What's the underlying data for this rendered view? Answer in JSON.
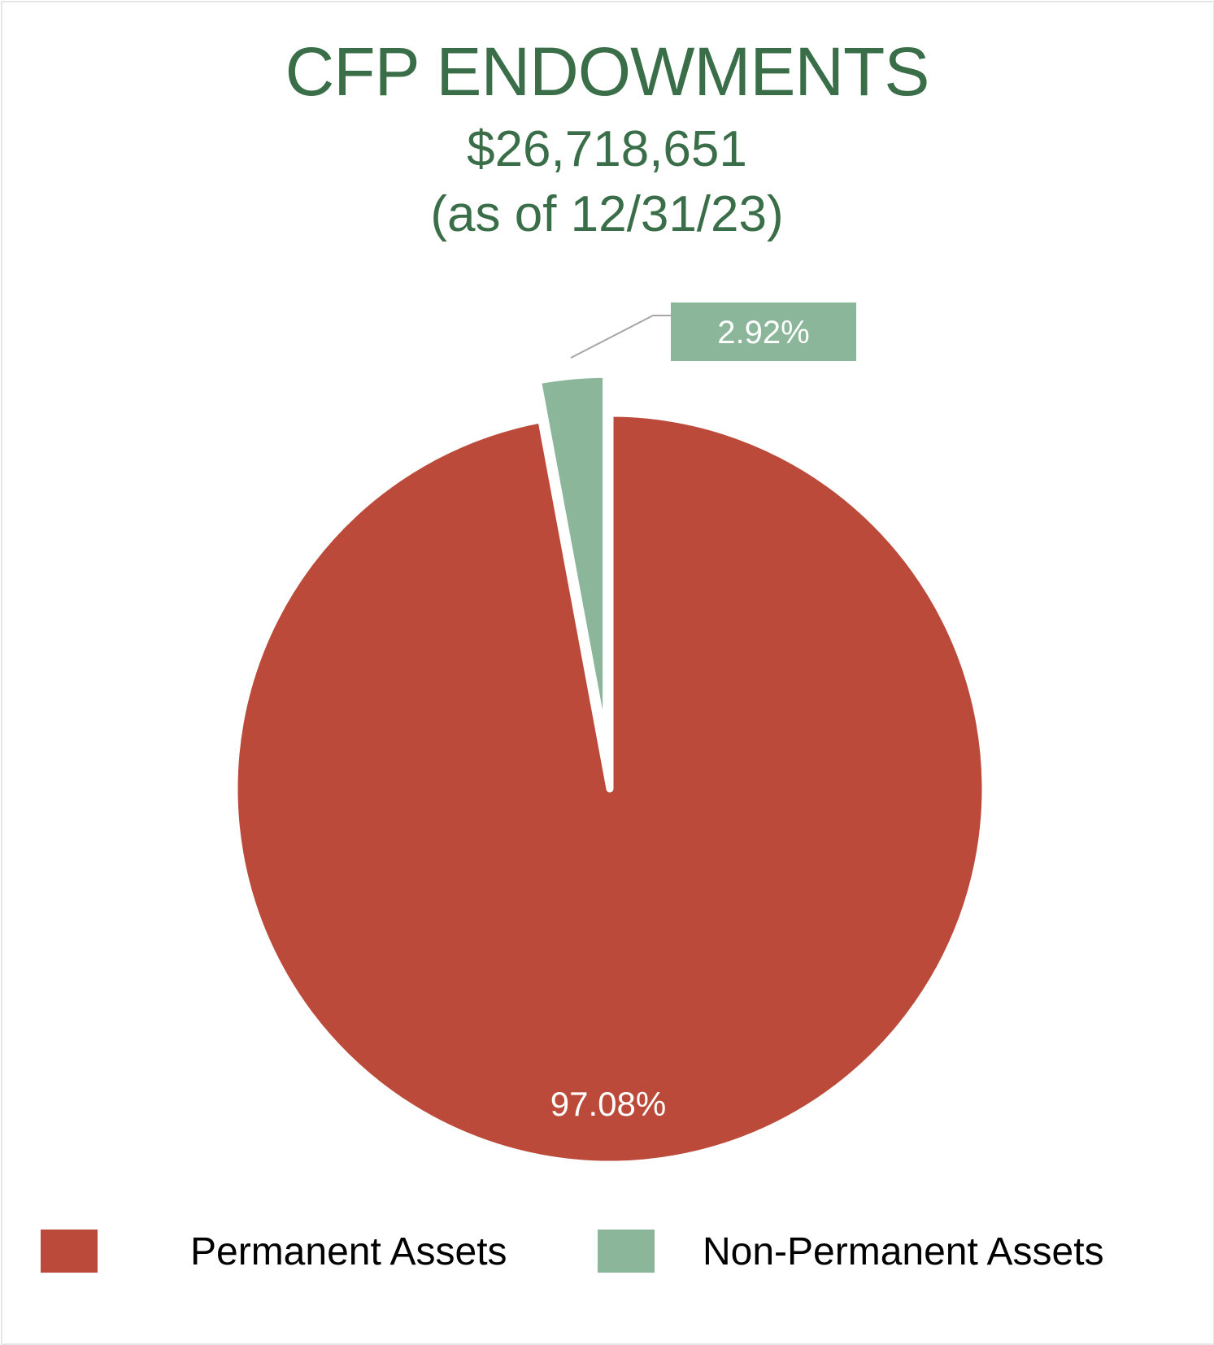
{
  "chart_data": {
    "type": "pie",
    "title": "CFP ENDOWMENTS",
    "subtitle_total": "$26,718,651",
    "subtitle_date": "(as of 12/31/23)",
    "series": [
      {
        "name": "Permanent Assets",
        "value": 97.08,
        "label": "97.08%",
        "color": "#bc4a3a"
      },
      {
        "name": "Non-Permanent Assets",
        "value": 2.92,
        "label": "2.92%",
        "color": "#8bb69a"
      }
    ],
    "exploded": "Non-Permanent Assets",
    "legend_position": "bottom"
  }
}
